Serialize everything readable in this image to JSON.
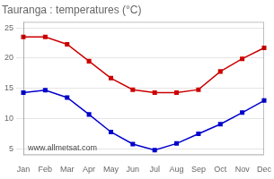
{
  "chart_data": {
    "type": "line",
    "title": "Tauranga : temperatures (°C)",
    "categories": [
      "Jan",
      "Feb",
      "Mar",
      "Apr",
      "May",
      "Jun",
      "Jul",
      "Aug",
      "Sep",
      "Oct",
      "Nov",
      "Dec"
    ],
    "series": [
      {
        "color": "#cc0000",
        "values": [
          23.5,
          23.5,
          22.3,
          19.5,
          16.7,
          14.8,
          14.3,
          14.3,
          14.8,
          17.8,
          19.9,
          21.7
        ]
      },
      {
        "color": "#0000cc",
        "values": [
          14.3,
          14.7,
          13.5,
          10.7,
          7.8,
          5.8,
          4.8,
          5.9,
          7.5,
          9.1,
          11.0,
          13.0
        ]
      }
    ],
    "ylim": [
      4.0,
      26.0
    ],
    "yticks": [
      5,
      10,
      15,
      20,
      25
    ],
    "grid": "y",
    "marker": "square",
    "annotations": [
      "www.allmetsat.com"
    ]
  }
}
